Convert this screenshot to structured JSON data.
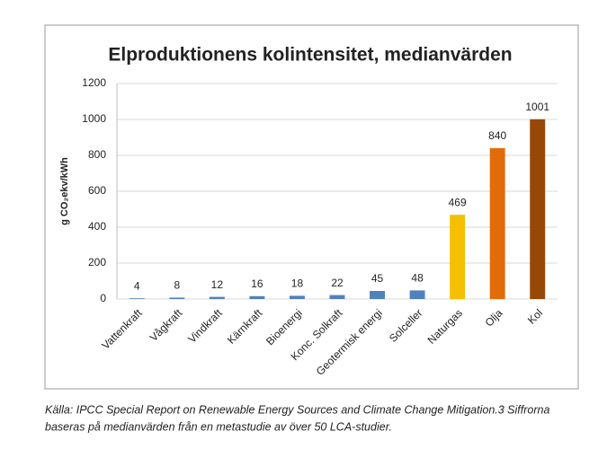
{
  "chart_data": {
    "type": "bar",
    "title": "Elproduktionens kolintensitet, medianvärden",
    "ylabel": "g CO₂ekv/kWh",
    "categories": [
      "Vattenkraft",
      "Vågkraft",
      "Vindkraft",
      "Kärnkraft",
      "Bioenergi",
      "Konc. Solkraft",
      "Geotermisk energi",
      "Solceller",
      "Naturgas",
      "Olja",
      "Kol"
    ],
    "values": [
      4,
      8,
      12,
      16,
      18,
      22,
      45,
      48,
      469,
      840,
      1001
    ],
    "colors": [
      "#4f81bd",
      "#4f81bd",
      "#4f81bd",
      "#4f81bd",
      "#4f81bd",
      "#4f81bd",
      "#4f81bd",
      "#4f81bd",
      "#f5c000",
      "#e36c0a",
      "#974806"
    ],
    "ylim": [
      0,
      1200
    ],
    "yticks": [
      0,
      200,
      400,
      600,
      800,
      1000,
      1200
    ],
    "grid": true
  },
  "caption": [
    "Källa: IPCC Special Report on Renewable Energy Sources and Climate Change Mitigation.3 Siffrorna",
    "baseras på medianvärden från en metastudie av över 50 LCA-studier."
  ]
}
